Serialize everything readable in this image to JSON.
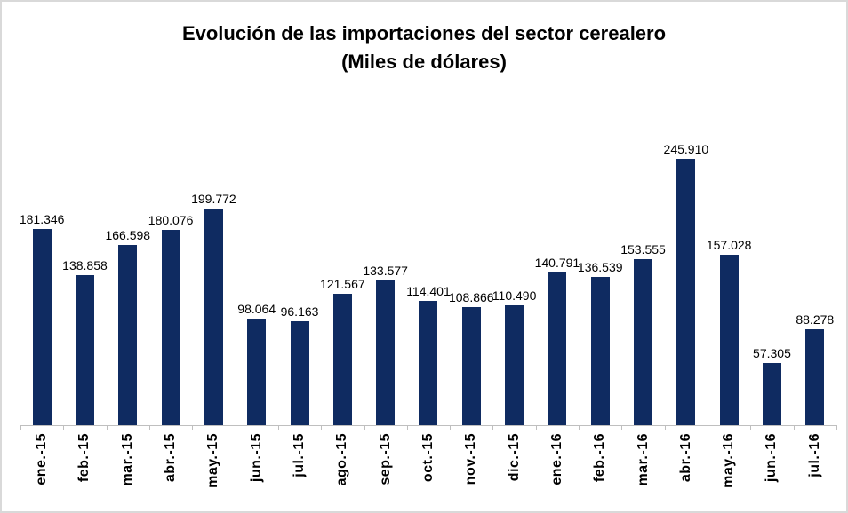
{
  "chart_data": {
    "type": "bar",
    "title": "Evolución de las importaciones del sector cerealero",
    "subtitle": "(Miles de dólares)",
    "categories": [
      "ene.-15",
      "feb.-15",
      "mar.-15",
      "abr.-15",
      "may.-15",
      "jun.-15",
      "jul.-15",
      "ago.-15",
      "sep.-15",
      "oct.-15",
      "nov.-15",
      "dic.-15",
      "ene.-16",
      "feb.-16",
      "mar.-16",
      "abr.-16",
      "may.-16",
      "jun.-16",
      "jul.-16"
    ],
    "values": [
      181346,
      138858,
      166598,
      180076,
      199772,
      98064,
      96163,
      121567,
      133577,
      114401,
      108866,
      110490,
      140791,
      136539,
      153555,
      245910,
      157028,
      57305,
      88278
    ],
    "value_labels": [
      "181.346",
      "138.858",
      "166.598",
      "180.076",
      "199.772",
      "98.064",
      "96.163",
      "121.567",
      "133.577",
      "114.401",
      "108.866",
      "110.490",
      "140.791",
      "136.539",
      "153.555",
      "245.910",
      "157.028",
      "57.305",
      "88.278"
    ],
    "xlabel": "",
    "ylabel": "",
    "ylim": [
      0,
      245910
    ],
    "grid": false,
    "legend": false,
    "bar_color": "#0F2B61",
    "axis_color": "#BFBFBF",
    "text_color": "#000000"
  }
}
